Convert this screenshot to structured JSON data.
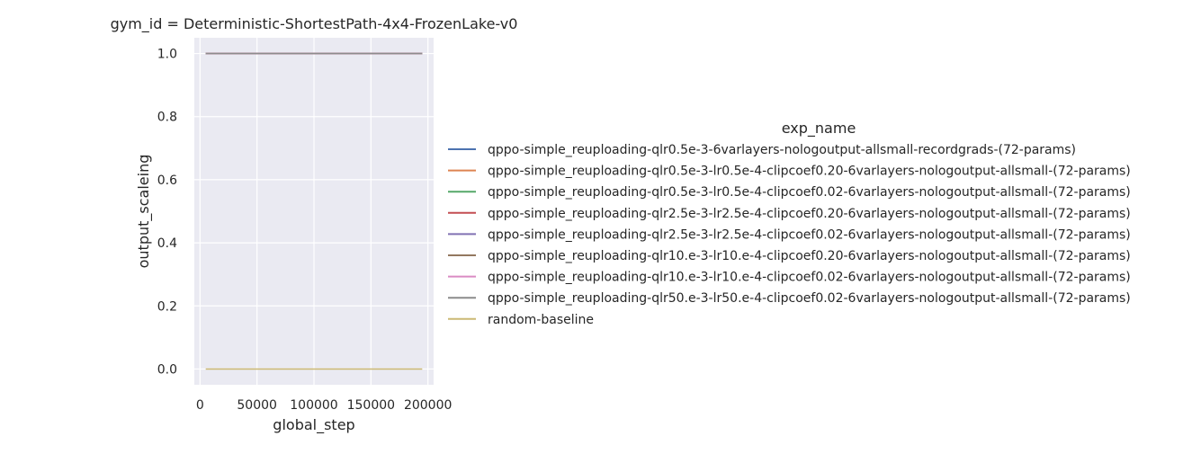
{
  "chart_data": {
    "type": "line",
    "title": "gym_id = Deterministic-ShortestPath-4x4-FrozenLake-v0",
    "xlabel": "global_step",
    "ylabel": "output_scaleing",
    "xlim": [
      -5000,
      205000
    ],
    "ylim": [
      -0.05,
      1.05
    ],
    "xticks": [
      0,
      50000,
      100000,
      150000,
      200000
    ],
    "xtick_labels": [
      "0",
      "50000",
      "100000",
      "150000",
      "200000"
    ],
    "yticks": [
      0.0,
      0.2,
      0.4,
      0.6,
      0.8,
      1.0
    ],
    "ytick_labels": [
      "0.0",
      "0.2",
      "0.4",
      "0.6",
      "0.8",
      "1.0"
    ],
    "grid": true,
    "legend_title": "exp_name",
    "legend_position": "right",
    "series": [
      {
        "name": "qppo-simple_reuploading-qlr0.5e-3-6varlayers-nologoutput-allsmall-recordgrads-(72-params)",
        "color": "#4c72b0",
        "x": [
          5000,
          195000
        ],
        "y": [
          1.0,
          1.0
        ]
      },
      {
        "name": "qppo-simple_reuploading-qlr0.5e-3-lr0.5e-4-clipcoef0.20-6varlayers-nologoutput-allsmall-(72-params)",
        "color": "#dd8452",
        "x": [
          5000,
          195000
        ],
        "y": [
          1.0,
          1.0
        ]
      },
      {
        "name": "qppo-simple_reuploading-qlr0.5e-3-lr0.5e-4-clipcoef0.02-6varlayers-nologoutput-allsmall-(72-params)",
        "color": "#55a868",
        "x": [
          5000,
          195000
        ],
        "y": [
          1.0,
          1.0
        ]
      },
      {
        "name": "qppo-simple_reuploading-qlr2.5e-3-lr2.5e-4-clipcoef0.20-6varlayers-nologoutput-allsmall-(72-params)",
        "color": "#c44e52",
        "x": [
          5000,
          195000
        ],
        "y": [
          1.0,
          1.0
        ]
      },
      {
        "name": "qppo-simple_reuploading-qlr2.5e-3-lr2.5e-4-clipcoef0.02-6varlayers-nologoutput-allsmall-(72-params)",
        "color": "#8172b3",
        "x": [
          5000,
          195000
        ],
        "y": [
          1.0,
          1.0
        ]
      },
      {
        "name": "qppo-simple_reuploading-qlr10.e-3-lr10.e-4-clipcoef0.20-6varlayers-nologoutput-allsmall-(72-params)",
        "color": "#937860",
        "x": [
          5000,
          195000
        ],
        "y": [
          1.0,
          1.0
        ]
      },
      {
        "name": "qppo-simple_reuploading-qlr10.e-3-lr10.e-4-clipcoef0.02-6varlayers-nologoutput-allsmall-(72-params)",
        "color": "#da8bc3",
        "x": [
          5000,
          195000
        ],
        "y": [
          1.0,
          1.0
        ]
      },
      {
        "name": "qppo-simple_reuploading-qlr50.e-3-lr50.e-4-clipcoef0.02-6varlayers-nologoutput-allsmall-(72-params)",
        "color": "#8c8c8c",
        "x": [
          5000,
          195000
        ],
        "y": [
          1.0,
          1.0
        ]
      },
      {
        "name": "random-baseline",
        "color": "#ccb974",
        "x": [
          5000,
          195000
        ],
        "y": [
          0.0,
          0.0
        ]
      }
    ]
  }
}
